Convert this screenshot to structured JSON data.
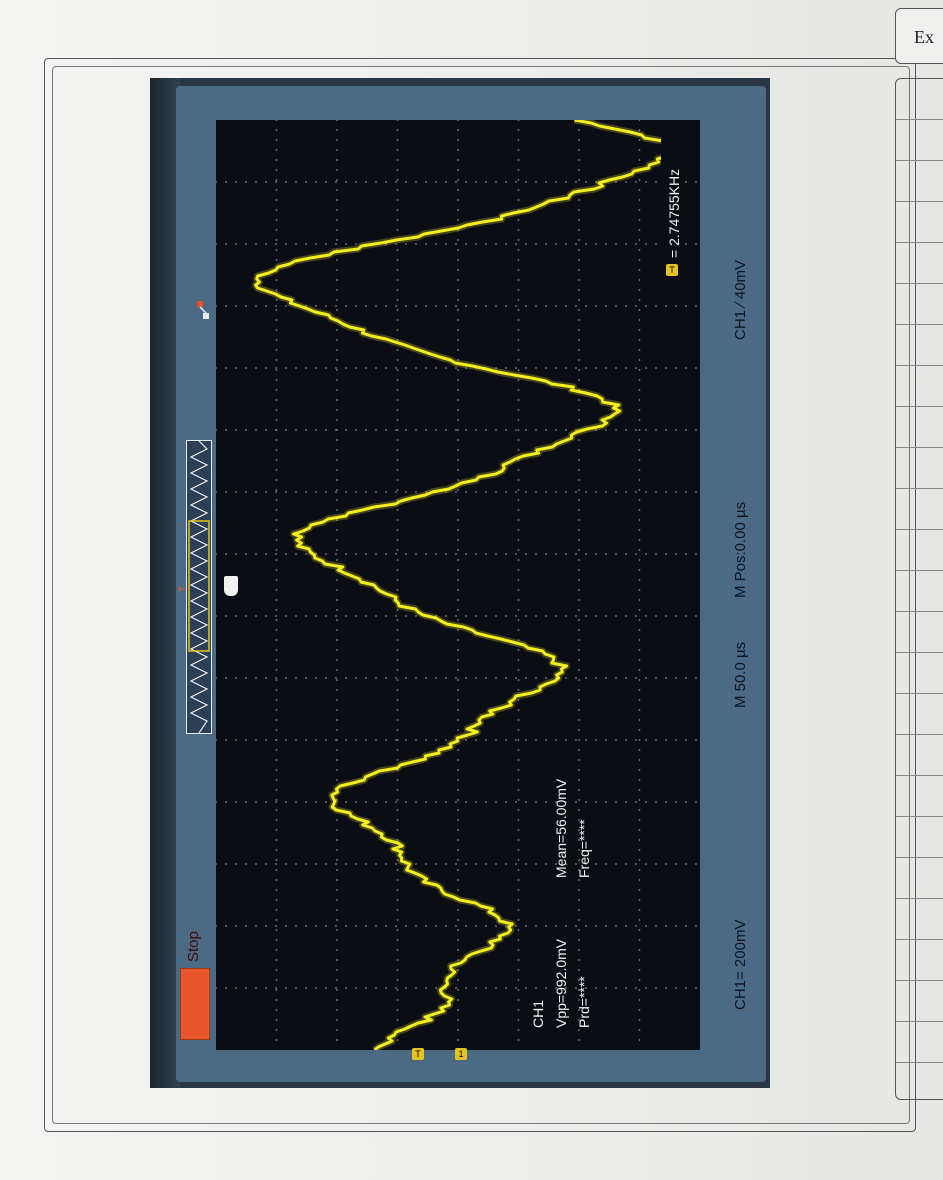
{
  "notebook": {
    "side_box_text": "Ex"
  },
  "scope": {
    "status_label": "Stop",
    "channel_label": "CH1",
    "vpp": "Vpp=992.0mV",
    "mean": "Mean=56.00mV",
    "prd": "Prd=****",
    "freq": "Freq=****",
    "scale": "CH1= 200mV",
    "timebase": "M 50.0 µs",
    "mpos": "M Pos:0.00 µs",
    "trigger": "CH1 ∕ 40mV",
    "trigger_freq": "= 2.74755KHz",
    "marker_1": "T",
    "marker_2": "1",
    "trigger_badge": "T",
    "colors": {
      "trace": "#f3ee1e",
      "screen": "#0b0d14",
      "bezel": "#4d6a84",
      "stop": "#e8572c",
      "grid": "#7d8596"
    }
  }
}
